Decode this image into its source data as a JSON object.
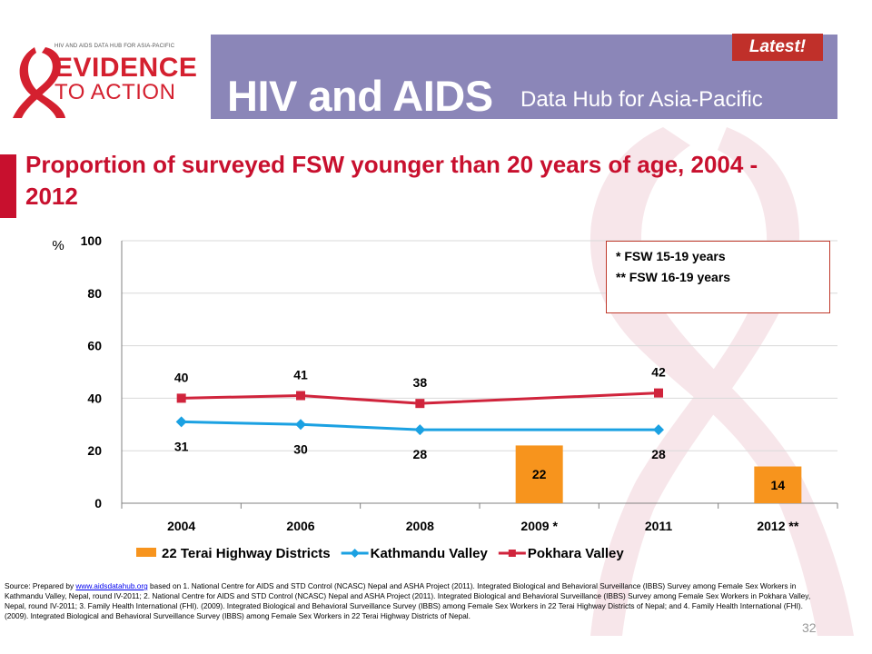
{
  "header": {
    "logo_small": "HIV AND AIDS DATA HUB FOR ASIA-PACIFIC",
    "logo_line1": "EVIDENCE",
    "logo_line2": "TO ACTION",
    "title": "HIV and AIDS",
    "subtitle": "Data Hub for Asia-Pacific",
    "latest_badge": "Latest!"
  },
  "slide": {
    "title": "Proportion of surveyed FSW younger than 20 years of age, 2004 - 2012",
    "page_number": "32"
  },
  "footnotes": [
    "* FSW 15-19 years",
    "** FSW 16-19 years"
  ],
  "source": {
    "prefix": "Source: Prepared by ",
    "link": "www.aidsdatahub.org",
    "text": " based on 1. National Centre for AIDS and STD Control (NCASC) Nepal and ASHA Project (2011). Integrated Biological and Behavioral Surveillance (IBBS) Survey among Female Sex Workers in Kathmandu Valley, Nepal, round IV-2011; 2. National Centre for AIDS and STD Control (NCASC) Nepal and ASHA Project (2011). Integrated Biological and Behavioral Surveillance (IBBS) Survey among Female Sex Workers in Pokhara Valley, Nepal, round IV-2011; 3. Family Health International (FHI). (2009). Integrated Biological and Behavioral Surveillance Survey (IBBS) among Female Sex Workers in 22 Terai Highway Districts of Nepal; and 4. Family Health International (FHI). (2009). Integrated Biological and Behavioral Surveillance Survey (IBBS) among Female Sex Workers in 22 Terai Highway Districts of Nepal."
  },
  "chart_data": {
    "type": "bar",
    "categories": [
      "2004",
      "2006",
      "2008",
      "2009 *",
      "2011",
      "2012 **"
    ],
    "ylabel": "%",
    "ylim": [
      0,
      100
    ],
    "yticks": [
      0,
      20,
      40,
      60,
      80,
      100
    ],
    "grid": true,
    "legend": "bottom",
    "series": [
      {
        "name": "22 Terai Highway Districts",
        "type": "bar",
        "color": "#f7941d",
        "values": [
          null,
          null,
          null,
          22,
          null,
          14
        ]
      },
      {
        "name": "Kathmandu Valley",
        "type": "line",
        "marker": "diamond",
        "color": "#1ba1e2",
        "values": [
          31,
          30,
          28,
          null,
          28,
          null
        ]
      },
      {
        "name": "Pokhara Valley",
        "type": "line",
        "marker": "square",
        "color": "#d0243c",
        "values": [
          40,
          41,
          38,
          null,
          42,
          null
        ]
      }
    ]
  }
}
